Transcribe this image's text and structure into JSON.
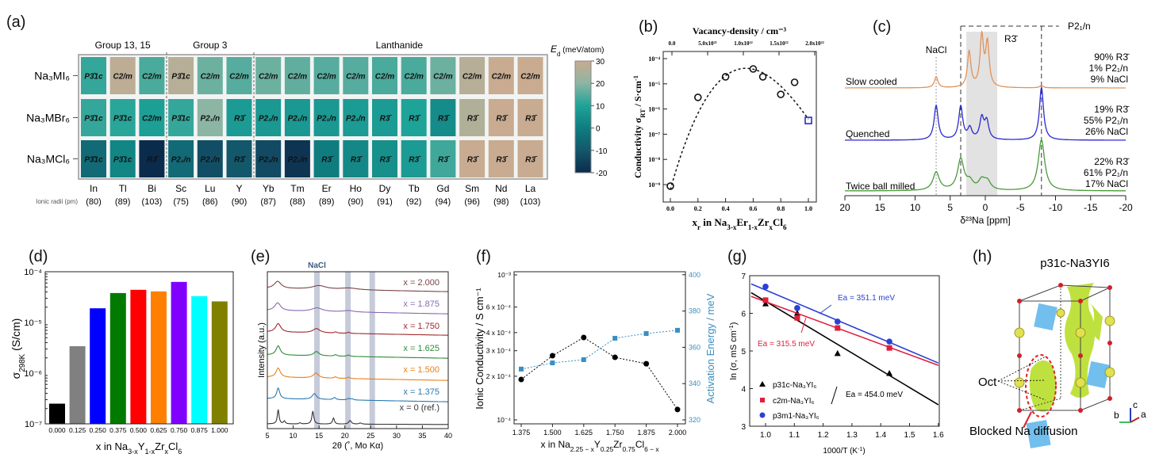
{
  "panel_labels": {
    "a": "(a)",
    "b": "(b)",
    "c": "(c)",
    "d": "(d)",
    "e": "(e)",
    "f": "(f)",
    "g": "(g)",
    "h": "(h)"
  },
  "chart_data": [
    {
      "panel": "a",
      "type": "heatmap",
      "groups": [
        {
          "label": "Group 13, 15",
          "span": [
            0,
            2
          ]
        },
        {
          "label": "Group 3",
          "span": [
            3,
            5
          ]
        },
        {
          "label": "Lanthanide",
          "span": [
            6,
            15
          ]
        }
      ],
      "columns": [
        "In",
        "Tl",
        "Bi",
        "Sc",
        "Lu",
        "Y",
        "Yb",
        "Tm",
        "Er",
        "Ho",
        "Dy",
        "Tb",
        "Gd",
        "Sm",
        "Nd",
        "La"
      ],
      "ionic_radii_label": "Ionic radii (pm)",
      "ionic_radii": [
        "(80)",
        "(89)",
        "(103)",
        "(75)",
        "(86)",
        "(90)",
        "(87)",
        "(88)",
        "(89)",
        "(90)",
        "(91)",
        "(92)",
        "(94)",
        "(96)",
        "(98)",
        "(103)"
      ],
      "rows": [
        {
          "label": "Na₃MI₆",
          "phases": [
            "P3̄1c",
            "C2/m",
            "C2/m",
            "P3̄1c",
            "C2/m",
            "C2/m",
            "C2/m",
            "C2/m",
            "C2/m",
            "C2/m",
            "C2/m",
            "C2/m",
            "C2/m",
            "C2/m",
            "C2/m",
            "C2/m"
          ],
          "values": [
            12,
            28,
            14,
            27,
            17,
            15,
            17,
            16,
            15,
            15,
            14,
            14,
            17,
            27,
            30,
            30
          ]
        },
        {
          "label": "Na₃MBr₆",
          "phases": [
            "P3̄1c",
            "P3̄1c",
            "C2/m",
            "P3̄1c",
            "P2₁/n",
            "R3̄",
            "P2₁/n",
            "P2₁/n",
            "P2₁/n",
            "P2₁/n",
            "R3̄",
            "R3̄",
            "R3̄",
            "R3̄",
            "R3̄",
            "R3̄"
          ],
          "values": [
            12,
            11,
            9,
            12,
            20,
            8,
            7,
            7,
            7,
            8,
            8,
            10,
            4,
            26,
            30,
            30
          ]
        },
        {
          "label": "Na₃MCl₆",
          "phases": [
            "P3̄1c",
            "P3̄1c",
            "R3̄",
            "P2₁/n",
            "P2₁/n",
            "R3̄",
            "P2₁/n",
            "P2₁/n",
            "R3̄",
            "R3̄",
            "R3̄",
            "R3̄",
            "R3̄",
            "R3̄",
            "R3̄",
            "R3̄"
          ],
          "values": [
            -5,
            2,
            -20,
            -5,
            -12,
            -10,
            -13,
            -18,
            0,
            3,
            5,
            8,
            13,
            30,
            30,
            30
          ]
        }
      ],
      "colorbar": {
        "symbol": "E",
        "subscript": "d",
        "unit": " (meV/atom)",
        "range": [
          -20,
          30
        ],
        "ticks": [
          30,
          20,
          10,
          0,
          -10,
          -20
        ],
        "stops": [
          [
            -20,
            "#0b2b4c"
          ],
          [
            -10,
            "#13576b"
          ],
          [
            0,
            "#0f7d80"
          ],
          [
            10,
            "#1ea398"
          ],
          [
            20,
            "#8db5a3"
          ],
          [
            30,
            "#c8ab90"
          ]
        ]
      }
    },
    {
      "panel": "b",
      "type": "scatter",
      "yscale": "log",
      "xlim": [
        0,
        1
      ],
      "ylim": [
        1e-10,
        0.0002
      ],
      "title": "Vacancy-density / cm⁻³",
      "top_ticks": [
        "0.0",
        "5.0x10²¹",
        "1.0x10²²",
        "1.5x10²²",
        "2.0x10²²"
      ],
      "xticks": [
        "0.0",
        "0.2",
        "0.4",
        "0.6",
        "0.8",
        "1.0"
      ],
      "yticks": [
        "10⁻⁴",
        "10⁻⁵",
        "10⁻⁶",
        "10⁻⁷",
        "10⁻⁸",
        "10⁻⁹"
      ],
      "xlabel": [
        [
          "x",
          ""
        ],
        [
          "r",
          "sub"
        ],
        [
          " in Na",
          ""
        ],
        [
          "3-x",
          "sub"
        ],
        [
          "Er",
          ""
        ],
        [
          "1-x",
          "sub"
        ],
        [
          "Zr",
          ""
        ],
        [
          "x",
          "sub"
        ],
        [
          "Cl",
          ""
        ],
        [
          "6",
          "sub"
        ]
      ],
      "ylabel": [
        [
          "Conductivity σ",
          ""
        ],
        [
          "RT",
          "sub"
        ],
        [
          " / S·cm",
          ""
        ],
        [
          "-1",
          "sup"
        ]
      ],
      "x": [
        0,
        0.2,
        0.4,
        0.6,
        0.67,
        0.8,
        0.9
      ],
      "y": [
        8.7e-10,
        2.9e-06,
        1.9e-05,
        3.9e-05,
        1.9e-05,
        3.8e-06,
        1.15e-05
      ],
      "highlight": {
        "x": 1.0,
        "y": 3.5e-07,
        "color": "#2a2ad0"
      },
      "fit": "dashed"
    },
    {
      "panel": "c",
      "type": "line",
      "xlim": [
        20,
        -20
      ],
      "xlabel": "δ²³Na [ppm]",
      "xticks": [
        20,
        15,
        10,
        5,
        0,
        -5,
        -10,
        -15,
        -20
      ],
      "annotations": {
        "nacl": "NaCl",
        "r3": "R3̄",
        "p21n": "P2₁/n",
        "r3_band": [
          2.7,
          -1.7
        ],
        "dashed_lines": [
          3.5,
          -8
        ],
        "nacl_line": 7
      },
      "series": [
        {
          "name": "Slow cooled",
          "color": "#e0925a",
          "fractions": [
            "90% R3̄",
            "1% P2₁/n",
            "9% NaCl"
          ],
          "width": 0.3,
          "peaks": [
            [
              7,
              0.2
            ],
            [
              2.3,
              0.64
            ],
            [
              0.5,
              0.9
            ],
            [
              -0.3,
              0.78
            ],
            [
              -8,
              0.04
            ]
          ]
        },
        {
          "name": "Quenched",
          "color": "#2a2ad0",
          "fractions": [
            "19% R3̄",
            "55% P2₁/n",
            "26% NaCl"
          ],
          "width": 0.35,
          "peaks": [
            [
              7,
              0.62
            ],
            [
              3.5,
              0.6
            ],
            [
              2.2,
              0.2
            ],
            [
              0.5,
              0.38
            ],
            [
              -0.2,
              0.32
            ],
            [
              -8,
              0.95
            ]
          ]
        },
        {
          "name": "Twice ball milled",
          "color": "#4a9a3a",
          "fractions": [
            "22% R3̄",
            "61% P2₁/n",
            "17% NaCl"
          ],
          "width": 0.55,
          "peaks": [
            [
              7,
              0.33
            ],
            [
              3.5,
              0.56
            ],
            [
              2.2,
              0.14
            ],
            [
              0.5,
              0.17
            ],
            [
              -0.3,
              0.15
            ],
            [
              -8,
              0.92
            ]
          ]
        }
      ]
    },
    {
      "panel": "d",
      "type": "bar",
      "yscale": "log",
      "ylim": [
        1e-07,
        0.0001
      ],
      "categories": [
        "0.000",
        "0.125",
        "0.250",
        "0.375",
        "0.500",
        "0.625",
        "0.750",
        "0.875",
        "1.000"
      ],
      "values": [
        2.5e-07,
        3.4e-06,
        1.9e-05,
        3.8e-05,
        4.4e-05,
        4.1e-05,
        6.3e-05,
        3.3e-05,
        2.6e-05
      ],
      "colors": [
        "#000000",
        "#808080",
        "#0000ff",
        "#007a00",
        "#ff0000",
        "#ff8000",
        "#8000ff",
        "#00ffff",
        "#808000"
      ],
      "yticks": [
        "10⁻⁴",
        "10⁻⁵",
        "10⁻⁶",
        "10⁻⁷"
      ],
      "ylabel": [
        [
          "σ",
          ""
        ],
        [
          "298K",
          "sub"
        ],
        [
          " (S/cm)",
          ""
        ]
      ],
      "xlabel": [
        [
          "x in Na",
          ""
        ],
        [
          "3-x",
          "sub"
        ],
        [
          "Y",
          ""
        ],
        [
          "1-x",
          "sub"
        ],
        [
          "Zr",
          ""
        ],
        [
          "x",
          "sub"
        ],
        [
          "Cl",
          ""
        ],
        [
          "6",
          "sub"
        ]
      ]
    },
    {
      "panel": "e",
      "type": "line",
      "xlim": [
        5,
        40
      ],
      "xticks": [
        5,
        10,
        15,
        20,
        25,
        30,
        35,
        40
      ],
      "xlabel": "2θ (˚, Mo Kα)",
      "ylabel": "Intensity (a.u.)",
      "band_label": "NaCl",
      "nacl_bands": [
        14.6,
        20.6,
        25.3
      ],
      "series": [
        {
          "name": "x = 2.000",
          "color": "#7a4545",
          "peaks": [
            [
              7,
              0.5,
              0.8
            ],
            [
              15,
              0.25,
              1.6
            ],
            [
              20.8,
              0.12,
              2
            ]
          ]
        },
        {
          "name": "x = 1.875",
          "color": "#8a6ab0",
          "peaks": [
            [
              7,
              0.55,
              0.7
            ],
            [
              14.6,
              0.25,
              1.2
            ],
            [
              20.7,
              0.1,
              1.2
            ]
          ]
        },
        {
          "name": "x = 1.750",
          "color": "#a0282e",
          "peaks": [
            [
              7.1,
              0.6,
              0.6
            ],
            [
              14.5,
              0.3,
              0.8
            ],
            [
              18.2,
              0.08,
              0.3
            ],
            [
              20.7,
              0.08,
              0.3
            ]
          ]
        },
        {
          "name": "x = 1.625",
          "color": "#2e8b3a",
          "peaks": [
            [
              7.1,
              0.65,
              0.5
            ],
            [
              14.5,
              0.3,
              0.6
            ],
            [
              18.2,
              0.1,
              0.3
            ],
            [
              20.7,
              0.1,
              0.3
            ]
          ]
        },
        {
          "name": "x = 1.500",
          "color": "#e8801a",
          "peaks": [
            [
              7.1,
              0.65,
              0.5
            ],
            [
              14.4,
              0.35,
              0.6
            ],
            [
              18.2,
              0.1,
              0.3
            ],
            [
              20.7,
              0.1,
              0.3
            ]
          ]
        },
        {
          "name": "x = 1.375",
          "color": "#2a7ab0",
          "peaks": [
            [
              7.1,
              0.75,
              0.35
            ],
            [
              14.1,
              0.4,
              0.5
            ],
            [
              18,
              0.15,
              0.3
            ],
            [
              20.7,
              0.1,
              0.3
            ],
            [
              21.4,
              0.08,
              0.3
            ]
          ]
        },
        {
          "name": "x = 0 (ref.)",
          "color": "#333333",
          "peaks": [
            [
              7.1,
              1.0,
              0.2
            ],
            [
              8.3,
              0.2,
              0.2
            ],
            [
              11.3,
              0.08,
              0.2
            ],
            [
              13.8,
              0.9,
              0.22
            ],
            [
              17.8,
              0.42,
              0.22
            ],
            [
              21,
              0.25,
              0.3
            ],
            [
              23,
              0.08,
              0.3
            ]
          ]
        }
      ]
    },
    {
      "panel": "f",
      "type": "line",
      "x": [
        1.375,
        1.5,
        1.625,
        1.75,
        1.875,
        2.0
      ],
      "xticks": [
        "1.375",
        "1.500",
        "1.625",
        "1.750",
        "1.875",
        "2.000"
      ],
      "xlabel": [
        [
          "x in Na",
          ""
        ],
        [
          "2.25 − x",
          "sub"
        ],
        [
          "Y",
          ""
        ],
        [
          "0.25",
          "sub"
        ],
        [
          "Zr",
          ""
        ],
        [
          "0.75",
          "sub"
        ],
        [
          "Cl",
          ""
        ],
        [
          "6 − x",
          "sub"
        ]
      ],
      "left_axis": {
        "label": "Ionic Conductivity / S cm⁻¹",
        "scale": "log",
        "ylim": [
          0.0001,
          0.001
        ],
        "ticks": [
          [
            0.001,
            "10⁻³"
          ],
          [
            0.0006,
            "6 x 10⁻⁴"
          ],
          [
            0.0004,
            "4 x 10⁻⁴"
          ],
          [
            0.0003,
            "3 x 10⁻⁴"
          ],
          [
            0.0002,
            "2 x 10⁻⁴"
          ],
          [
            0.0001,
            "10⁻⁴"
          ]
        ],
        "color": "#000000"
      },
      "right_axis": {
        "label": "Activation Energy / meV",
        "ylim": [
          320,
          400
        ],
        "ticks": [
          400,
          380,
          360,
          340,
          320
        ],
        "color": "#3a8fc0"
      },
      "series": [
        {
          "axis": "left",
          "marker": "circle",
          "color": "#000000",
          "values": [
            0.00019,
            0.000277,
            0.00037,
            0.00027,
            0.000244,
            0.000118
          ]
        },
        {
          "axis": "right",
          "marker": "square",
          "color": "#3a8fc0",
          "values": [
            348,
            351.4,
            353.2,
            365,
            367.6,
            369.4
          ]
        }
      ]
    },
    {
      "panel": "g",
      "type": "scatter",
      "xlim": [
        0.95,
        1.6
      ],
      "ylim": [
        3,
        7
      ],
      "xticks": [
        "1.0",
        "1.1",
        "1.2",
        "1.3",
        "1.4",
        "1.5",
        "1.6"
      ],
      "yticks": [
        "3",
        "4",
        "5",
        "6",
        "7"
      ],
      "xlabel": [
        [
          "1000/T (K",
          ""
        ],
        [
          "-1",
          "sup"
        ],
        [
          ")",
          ""
        ]
      ],
      "ylabel": [
        [
          "ln (σ, mS cm",
          ""
        ],
        [
          "-1",
          "sup"
        ],
        [
          ")",
          ""
        ]
      ],
      "series": [
        {
          "name": "p31c-Na₃YI₆",
          "marker": "triangle",
          "color": "#000000",
          "x": [
            1.0,
            1.11,
            1.25,
            1.43
          ],
          "y": [
            6.26,
            6.01,
            4.94,
            4.41
          ],
          "fit": [
            [
              0.95,
              6.55
            ],
            [
              1.6,
              3.57
            ]
          ],
          "ea": "Ea = 454.0 meV"
        },
        {
          "name": "c2m-Na₃YI₆",
          "marker": "square",
          "color": "#e01e3c",
          "x": [
            1.0,
            1.11,
            1.25,
            1.43
          ],
          "y": [
            6.35,
            5.88,
            5.61,
            5.08
          ],
          "fit": [
            [
              0.95,
              6.45
            ],
            [
              1.6,
              4.62
            ]
          ],
          "ea": "Ea = 315.5 meV"
        },
        {
          "name": "p3m1-Na₃YI₆",
          "marker": "circle",
          "color": "#2b3fd6",
          "x": [
            1.0,
            1.11,
            1.25,
            1.43
          ],
          "y": [
            6.71,
            6.14,
            5.78,
            5.25
          ],
          "fit": [
            [
              0.95,
              6.78
            ],
            [
              1.6,
              4.68
            ]
          ],
          "ea": "Ea = 351.1 meV"
        }
      ]
    }
  ],
  "panel_h": {
    "title": "p31c-Na3YI6",
    "oct": "Oct",
    "blocked": "Blocked Na diffusion",
    "axis_a": "a",
    "axis_b": "b",
    "axis_c": "c"
  }
}
